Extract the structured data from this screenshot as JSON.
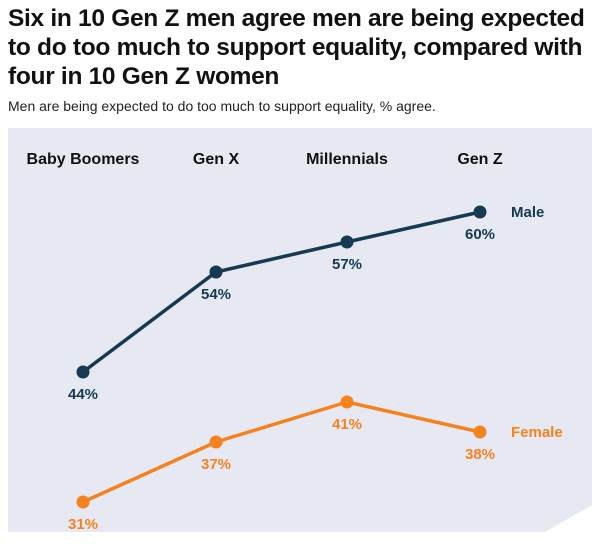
{
  "title": "Six in 10 Gen Z men agree men are being expected to do too much to support equality, compared with four in 10 Gen Z women",
  "subtitle": "Men are being expected to do too much to support equality, % agree.",
  "chart_data": {
    "type": "line",
    "categories": [
      "Baby Boomers",
      "Gen X",
      "Millennials",
      "Gen Z"
    ],
    "series": [
      {
        "name": "Male",
        "values": [
          44,
          54,
          57,
          60
        ],
        "color": "#163a52"
      },
      {
        "name": "Female",
        "values": [
          31,
          37,
          41,
          38
        ],
        "color": "#f5821f"
      }
    ],
    "value_suffix": "%",
    "background": "#e6e9f1",
    "grid": false,
    "legend": "line-end labels"
  }
}
